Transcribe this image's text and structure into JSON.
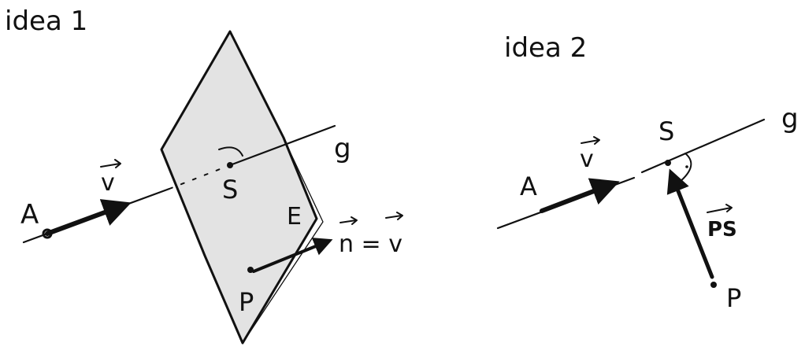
{
  "panels": [
    {
      "title": "idea 1",
      "labels": {
        "point_a": "A",
        "vector_v": "v",
        "point_s": "S",
        "line_g": "g",
        "plane_e": "E",
        "point_p": "P",
        "normal_eq": "n = v"
      }
    },
    {
      "title": "idea 2",
      "labels": {
        "point_a": "A",
        "vector_v": "v",
        "point_s": "S",
        "line_g": "g",
        "vector_ps": "PS",
        "point_p": "P"
      }
    }
  ],
  "colors": {
    "ink": "#111111",
    "plane_fill": "#e3e3e3"
  }
}
